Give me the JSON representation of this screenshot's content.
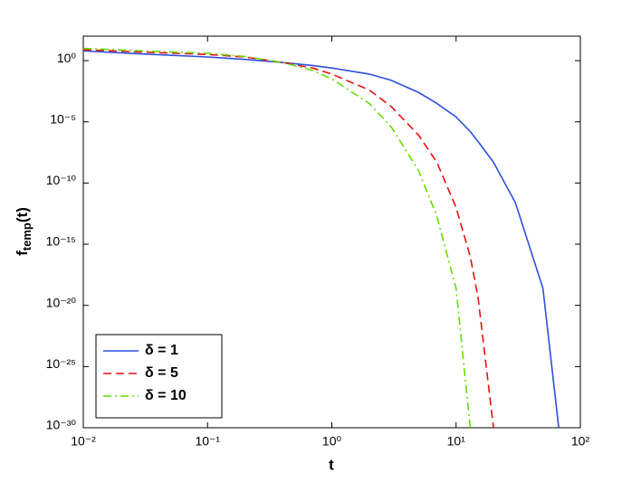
{
  "chart_data": {
    "type": "line",
    "xlabel": "t",
    "ylabel": {
      "text": "f",
      "subscript": "temp",
      "suffix": "(t)"
    },
    "xscale": "log",
    "yscale": "log",
    "xlim": [
      0.01,
      100
    ],
    "ylim": [
      1e-30,
      100
    ],
    "xticks": [
      {
        "value": 0.01,
        "label": "10⁻²"
      },
      {
        "value": 0.1,
        "label": "10⁻¹"
      },
      {
        "value": 1,
        "label": "10⁰"
      },
      {
        "value": 10,
        "label": "10¹"
      },
      {
        "value": 100,
        "label": "10²"
      }
    ],
    "yticks": [
      {
        "value": 1e-30,
        "label": "10⁻³⁰"
      },
      {
        "value": 1e-25,
        "label": "10⁻²⁵"
      },
      {
        "value": 1e-20,
        "label": "10⁻²⁰"
      },
      {
        "value": 1e-15,
        "label": "10⁻¹⁵"
      },
      {
        "value": 1e-10,
        "label": "10⁻¹⁰"
      },
      {
        "value": 1e-05,
        "label": "10⁻⁵"
      },
      {
        "value": 1,
        "label": "10⁰"
      }
    ],
    "grid": false,
    "legend": "lower-left",
    "x": [
      0.01,
      0.03,
      0.1,
      0.2,
      0.4,
      0.7,
      1,
      2,
      3,
      5,
      7,
      10,
      13,
      15,
      20,
      30,
      50,
      67
    ],
    "series": [
      {
        "name": "δ = 1",
        "color": "#2c4fe0",
        "dash": "solid",
        "values": [
          6.3,
          3.5,
          2,
          1.26,
          0.71,
          0.4,
          0.25,
          0.08,
          0.025,
          0.0025,
          0.00032,
          2.5e-05,
          1.6e-06,
          2.5e-07,
          5e-09,
          2.5e-12,
          2.5e-19,
          1e-30
        ]
      },
      {
        "name": "δ = 5",
        "color": "#e81010",
        "dash": "dashed",
        "values": [
          7.9,
          5,
          3.2,
          2,
          0.71,
          0.25,
          0.08,
          0.004,
          0.00018,
          8e-07,
          5e-09,
          1e-12,
          1e-16,
          5e-20,
          1e-30,
          null,
          null,
          null
        ]
      },
      {
        "name": "δ = 10",
        "color": "#66dd00",
        "dash": "dashdot",
        "values": [
          10,
          6.3,
          4,
          2.2,
          0.71,
          0.16,
          0.032,
          0.00032,
          4e-06,
          1e-09,
          2e-13,
          2.5e-19,
          1e-30,
          null,
          null,
          null,
          null,
          null
        ]
      }
    ]
  }
}
